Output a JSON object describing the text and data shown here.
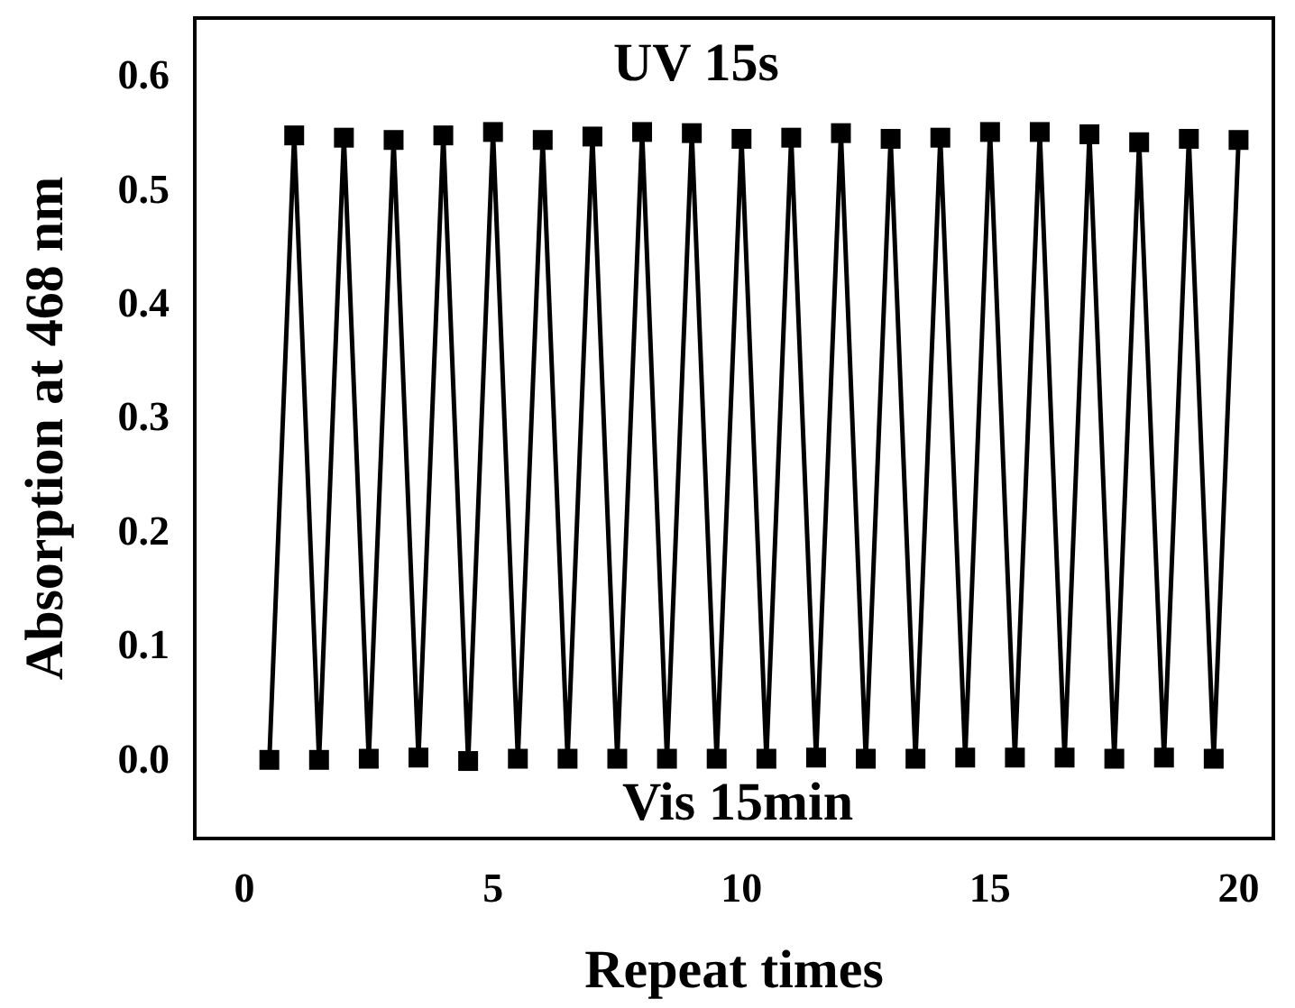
{
  "chart_data": {
    "type": "line",
    "xlabel": "Repeat times",
    "ylabel": "Absorption at 468 nm",
    "x": [
      0.5,
      1,
      1.5,
      2,
      2.5,
      3,
      3.5,
      4,
      4.5,
      5,
      5.5,
      6,
      6.5,
      7,
      7.5,
      8,
      8.5,
      9,
      9.5,
      10,
      10.5,
      11,
      11.5,
      12,
      12.5,
      13,
      13.5,
      14,
      14.5,
      15,
      15.5,
      16,
      16.5,
      17,
      17.5,
      18,
      18.5,
      19,
      19.5,
      20
    ],
    "series": [
      {
        "color": "#000000",
        "values": [
          -0.001,
          0.547,
          -0.001,
          0.545,
          0.0,
          0.543,
          0.001,
          0.547,
          -0.002,
          0.55,
          0.0,
          0.543,
          0.0,
          0.546,
          0.0,
          0.55,
          0.0,
          0.549,
          0.0,
          0.544,
          0.0,
          0.545,
          0.001,
          0.549,
          0.0,
          0.544,
          0.0,
          0.545,
          0.001,
          0.55,
          0.001,
          0.55,
          0.001,
          0.548,
          0.0,
          0.541,
          0.001,
          0.544,
          0.0,
          0.543
        ]
      }
    ],
    "xlim": [
      -1,
      20.7
    ],
    "xticks": [
      0,
      5,
      10,
      15,
      20
    ],
    "ylim": [
      -0.07,
      0.65
    ],
    "yticks": [
      {
        "value": 0,
        "label": "0.0"
      },
      0.1,
      0.2,
      0.3,
      0.4,
      0.5,
      0.6
    ],
    "annotations": [
      "UV 15s",
      "Vis 15min"
    ],
    "marker": "square",
    "line_style": "solid",
    "grid": false
  }
}
